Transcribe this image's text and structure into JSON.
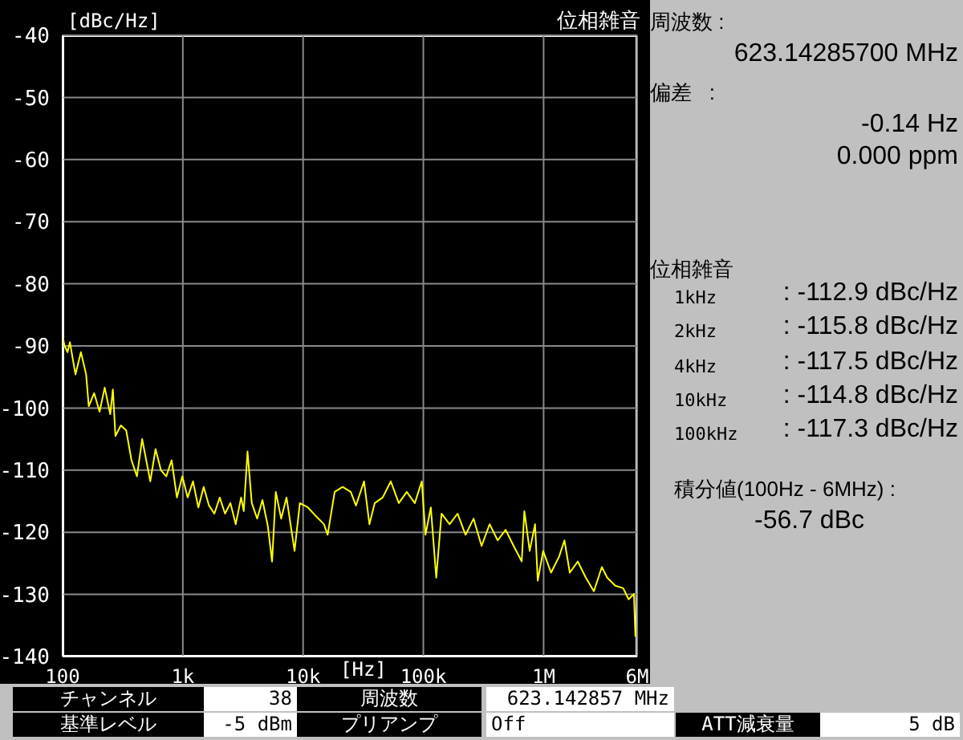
{
  "chart_data": {
    "type": "line",
    "title": "位相雑音",
    "xlabel": "[Hz]",
    "ylabel": "[dBc/Hz]",
    "log": "x",
    "grid": true,
    "xlim": [
      100,
      6000000
    ],
    "xticks": [
      100,
      {
        "value": 1000,
        "label": "1k"
      },
      {
        "value": 10000,
        "label": "10k"
      },
      {
        "value": 100000,
        "label": "100k"
      },
      {
        "value": 1000000,
        "label": "1M"
      },
      {
        "value": 6000000,
        "label": "6M"
      }
    ],
    "ylim": [
      -140,
      -40
    ],
    "yticks": [
      -140,
      -130,
      -120,
      -110,
      -100,
      -90,
      -80,
      -70,
      -60,
      -50,
      -40
    ],
    "x": [
      100,
      104,
      110,
      115,
      128,
      142,
      157,
      165,
      183,
      203,
      224,
      249,
      262,
      275,
      305,
      338,
      374,
      415,
      459,
      536,
      593,
      657,
      728,
      807,
      893,
      990,
      1096,
      1214,
      1346,
      1490,
      1650,
      1829,
      2026,
      2244,
      2486,
      2754,
      3051,
      3210,
      3450,
      3744,
      4150,
      4592,
      5090,
      5520,
      5930,
      6570,
      7280,
      8490,
      9400,
      10960,
      12790,
      14900,
      16000,
      18300,
      21300,
      24900,
      27500,
      32100,
      35600,
      39400,
      45900,
      53600,
      62500,
      72800,
      84900,
      97000,
      104200,
      115400,
      128000,
      141600,
      165200,
      192400,
      224400,
      261800,
      304900,
      355700,
      415000,
      483100,
      563600,
      657600,
      691800,
      766000,
      849000,
      893600,
      991000,
      1153000,
      1346000,
      1490000,
      1651000,
      1924000,
      2244000,
      2618000,
      3049000,
      3380000,
      3945000,
      4592000,
      5090000,
      5640000,
      5800000
    ],
    "series": [
      {
        "color": "#ffff00",
        "values": [
          -88.5,
          -90,
          -91,
          -89.4,
          -94.6,
          -91,
          -94.6,
          -99.7,
          -97.6,
          -100.6,
          -96.7,
          -101,
          -97,
          -104.5,
          -102.8,
          -103.6,
          -108.4,
          -111,
          -105,
          -111.8,
          -106.6,
          -110,
          -111,
          -108.4,
          -114.4,
          -111,
          -114.4,
          -111.8,
          -116,
          -112.7,
          -115.7,
          -117,
          -114.4,
          -117,
          -115.3,
          -118.7,
          -114.4,
          -116.6,
          -107,
          -115.3,
          -117.8,
          -114.8,
          -119,
          -124.7,
          -113.5,
          -117.8,
          -114.4,
          -123,
          -115.3,
          -116,
          -117.4,
          -118.7,
          -120.4,
          -113.5,
          -112.7,
          -113.5,
          -115.7,
          -111.8,
          -118.7,
          -115.3,
          -114.4,
          -111.8,
          -115.3,
          -113.5,
          -115.3,
          -111.8,
          -120.4,
          -116,
          -127.3,
          -117,
          -118.7,
          -117,
          -120.4,
          -117.8,
          -122.2,
          -118.7,
          -121.3,
          -119.6,
          -122.2,
          -124.7,
          -116.6,
          -123,
          -118.7,
          -127.8,
          -123,
          -126.5,
          -123.9,
          -121.3,
          -126.5,
          -124.7,
          -127.3,
          -129.5,
          -125.6,
          -127.3,
          -128.6,
          -129,
          -130.8,
          -129.9,
          -136.8
        ]
      }
    ],
    "annotations": [
      "周波数 :",
      "623.14285700 MHz",
      "偏差   :",
      "-0.14 Hz",
      "0.000 ppm",
      "位相雑音",
      "1kHz",
      ": -112.9 dBc/Hz",
      "2kHz",
      ": -115.8 dBc/Hz",
      "4kHz",
      ": -117.5 dBc/Hz",
      "10kHz",
      ": -114.8 dBc/Hz",
      "100kHz",
      ": -117.3 dBc/Hz",
      "積分値(100Hz - 6MHz) :",
      "-56.7 dBc",
      "チャンネル",
      "38",
      "周波数",
      "623.142857 MHz",
      "基準レベル",
      "-5 dBm",
      "プリアンプ",
      "Off",
      "ATT減衰量",
      "5 dB"
    ]
  }
}
